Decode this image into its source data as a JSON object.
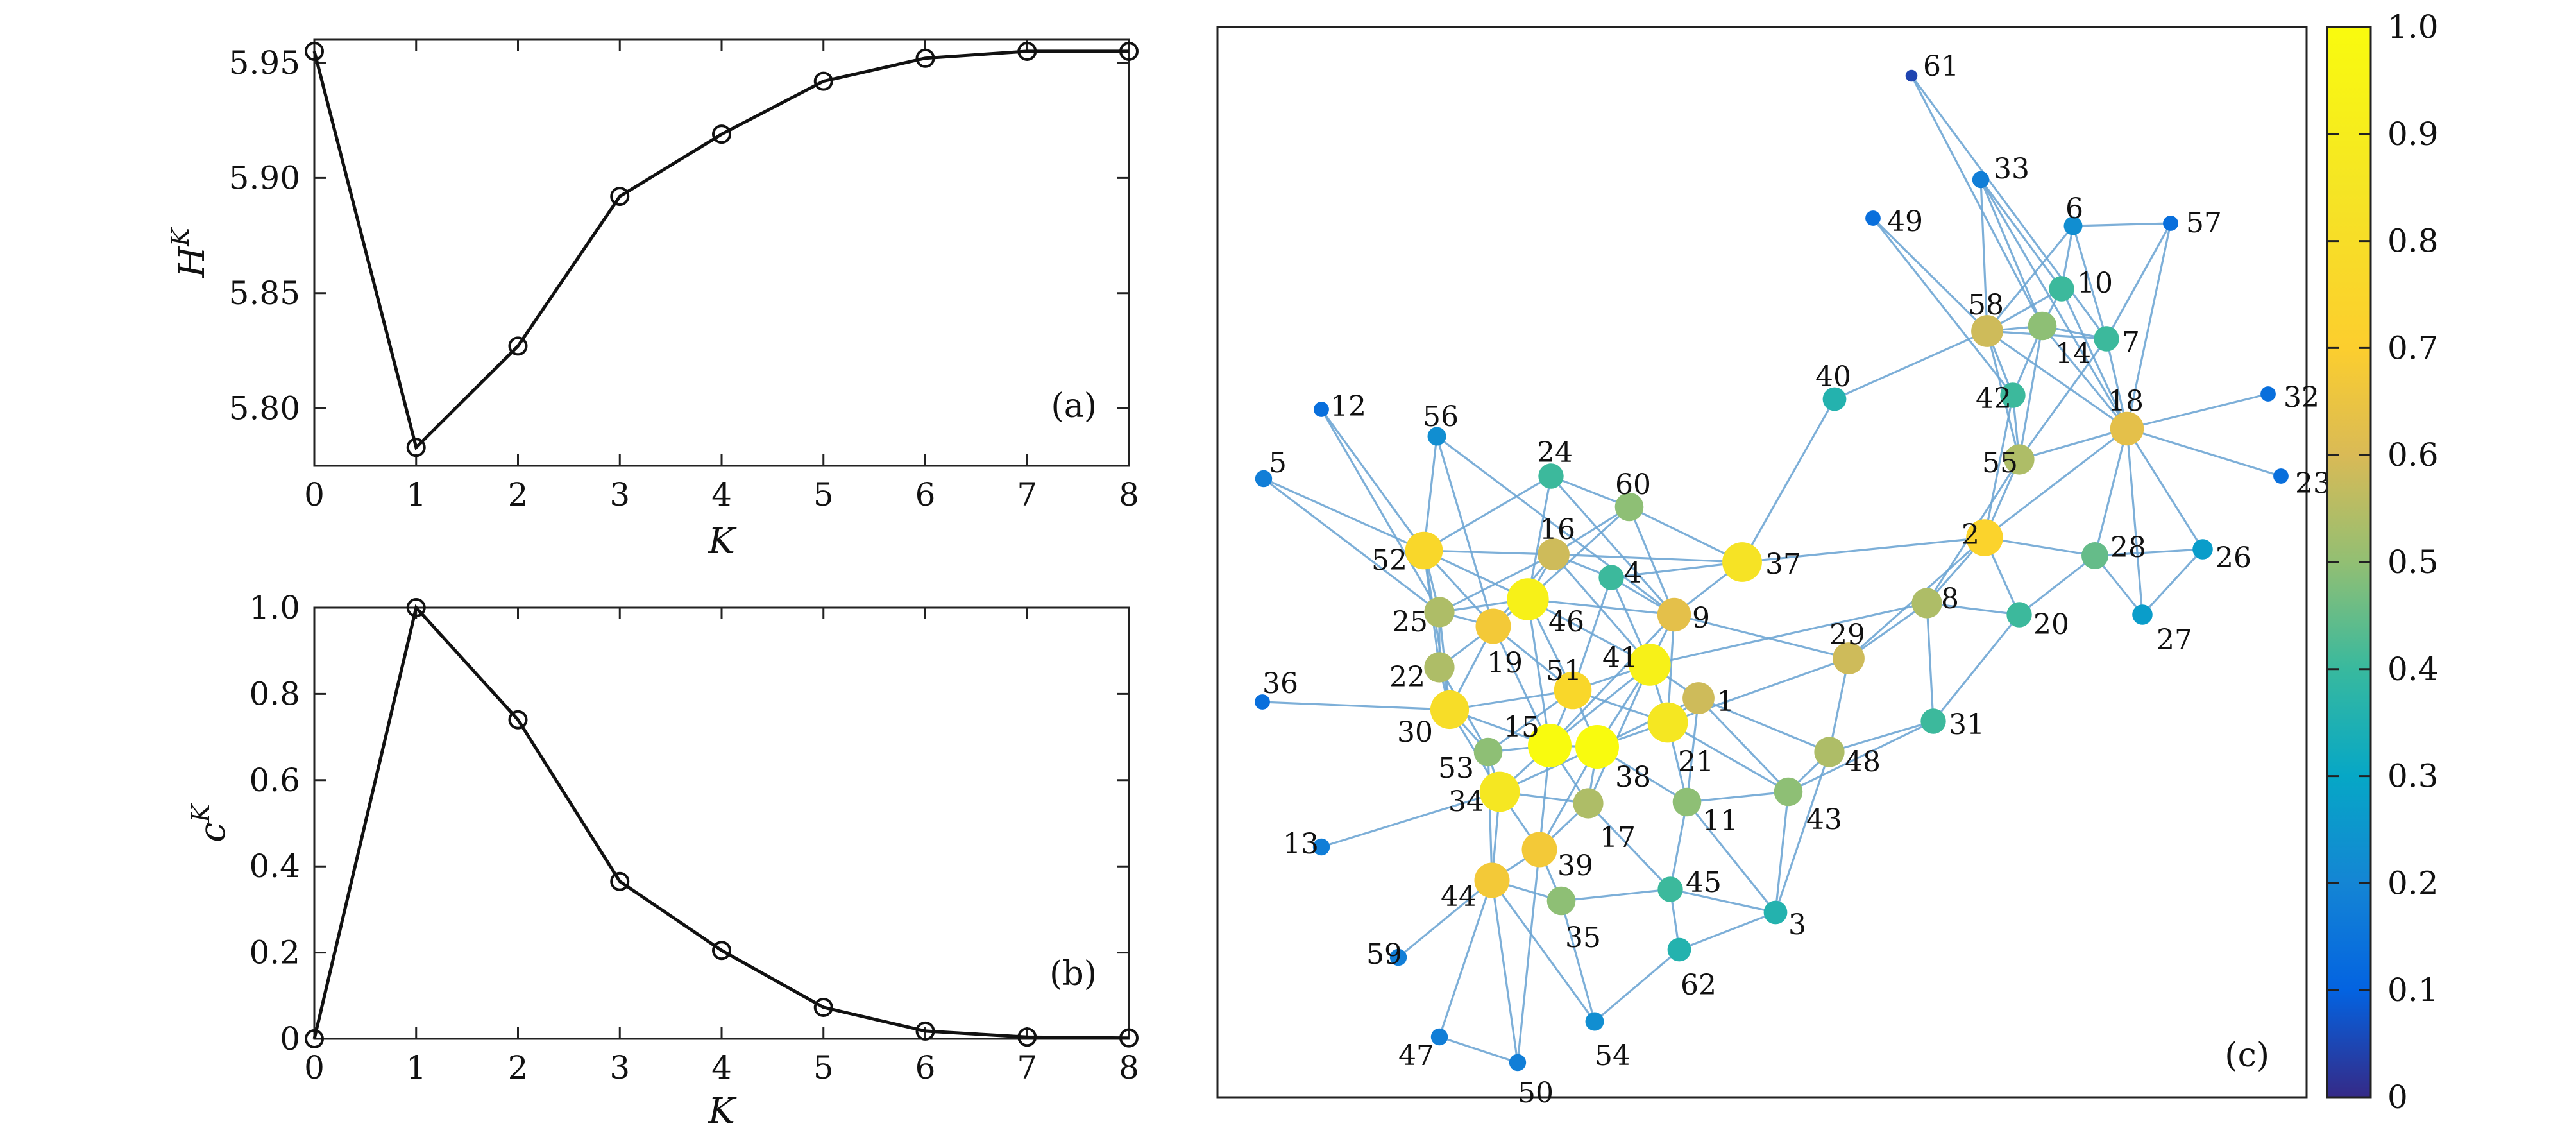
{
  "chart_data": [
    {
      "type": "line",
      "panel_label": "(a)",
      "xlabel": "K",
      "ylabel_base": "H",
      "ylabel_sup": "K",
      "x": [
        0,
        1,
        2,
        3,
        4,
        5,
        6,
        7,
        8
      ],
      "series": [
        {
          "values": [
            5.955,
            5.783,
            5.827,
            5.892,
            5.919,
            5.942,
            5.952,
            5.955,
            5.955
          ]
        }
      ],
      "xlim": [
        0,
        8
      ],
      "ylim": [
        5.775,
        5.96
      ],
      "xticks": [
        "0",
        "1",
        "2",
        "3",
        "4",
        "5",
        "6",
        "7",
        "8"
      ],
      "yticks": [
        {
          "value": 5.8,
          "label": "5.80"
        },
        {
          "value": 5.85,
          "label": "5.85"
        },
        {
          "value": 5.9,
          "label": "5.90"
        },
        {
          "value": 5.95,
          "label": "5.95"
        }
      ],
      "marker": "circle-open",
      "grid": false
    },
    {
      "type": "line",
      "panel_label": "(b)",
      "xlabel": "K",
      "ylabel_base": "c",
      "ylabel_sup": "K",
      "x": [
        0,
        1,
        2,
        3,
        4,
        5,
        6,
        7,
        8
      ],
      "series": [
        {
          "values": [
            0.0,
            1.0,
            0.74,
            0.365,
            0.205,
            0.073,
            0.018,
            0.004,
            0.002
          ]
        }
      ],
      "xlim": [
        0,
        8
      ],
      "ylim": [
        0,
        1.0
      ],
      "xticks": [
        "0",
        "1",
        "2",
        "3",
        "4",
        "5",
        "6",
        "7",
        "8"
      ],
      "yticks": [
        {
          "value": 0,
          "label": "0"
        },
        {
          "value": 0.2,
          "label": "0.2"
        },
        {
          "value": 0.4,
          "label": "0.4"
        },
        {
          "value": 0.6,
          "label": "0.6"
        },
        {
          "value": 0.8,
          "label": "0.8"
        },
        {
          "value": 1.0,
          "label": "1.0"
        }
      ],
      "marker": "circle-open",
      "grid": false
    },
    {
      "type": "network",
      "panel_label": "(c)",
      "colormap": "parula",
      "colorbar": {
        "min": 0,
        "max": 1,
        "ticks": [
          "0",
          "0.1",
          "0.2",
          "0.3",
          "0.4",
          "0.5",
          "0.6",
          "0.7",
          "0.8",
          "0.9",
          "1.0"
        ]
      },
      "nodes": [
        {
          "id": "1",
          "v": 0.65
        },
        {
          "id": "2",
          "v": 0.8
        },
        {
          "id": "3",
          "v": 0.4
        },
        {
          "id": "4",
          "v": 0.45
        },
        {
          "id": "5",
          "v": 0.2
        },
        {
          "id": "6",
          "v": 0.25
        },
        {
          "id": "7",
          "v": 0.45
        },
        {
          "id": "8",
          "v": 0.6
        },
        {
          "id": "9",
          "v": 0.7
        },
        {
          "id": "10",
          "v": 0.45
        },
        {
          "id": "11",
          "v": 0.55
        },
        {
          "id": "12",
          "v": 0.15
        },
        {
          "id": "13",
          "v": 0.2
        },
        {
          "id": "14",
          "v": 0.55
        },
        {
          "id": "15",
          "v": 1.0
        },
        {
          "id": "16",
          "v": 0.65
        },
        {
          "id": "17",
          "v": 0.6
        },
        {
          "id": "18",
          "v": 0.7
        },
        {
          "id": "19",
          "v": 0.75
        },
        {
          "id": "20",
          "v": 0.45
        },
        {
          "id": "21",
          "v": 0.9
        },
        {
          "id": "22",
          "v": 0.6
        },
        {
          "id": "23",
          "v": 0.15
        },
        {
          "id": "24",
          "v": 0.45
        },
        {
          "id": "25",
          "v": 0.6
        },
        {
          "id": "26",
          "v": 0.3
        },
        {
          "id": "27",
          "v": 0.3
        },
        {
          "id": "28",
          "v": 0.5
        },
        {
          "id": "29",
          "v": 0.65
        },
        {
          "id": "30",
          "v": 0.85
        },
        {
          "id": "31",
          "v": 0.45
        },
        {
          "id": "32",
          "v": 0.15
        },
        {
          "id": "33",
          "v": 0.2
        },
        {
          "id": "34",
          "v": 0.9
        },
        {
          "id": "35",
          "v": 0.55
        },
        {
          "id": "36",
          "v": 0.15
        },
        {
          "id": "37",
          "v": 0.88
        },
        {
          "id": "38",
          "v": 1.0
        },
        {
          "id": "39",
          "v": 0.75
        },
        {
          "id": "40",
          "v": 0.4
        },
        {
          "id": "41",
          "v": 0.95
        },
        {
          "id": "42",
          "v": 0.45
        },
        {
          "id": "43",
          "v": 0.55
        },
        {
          "id": "44",
          "v": 0.75
        },
        {
          "id": "45",
          "v": 0.45
        },
        {
          "id": "46",
          "v": 0.95
        },
        {
          "id": "47",
          "v": 0.2
        },
        {
          "id": "48",
          "v": 0.6
        },
        {
          "id": "49",
          "v": 0.15
        },
        {
          "id": "50",
          "v": 0.2
        },
        {
          "id": "51",
          "v": 0.82
        },
        {
          "id": "52",
          "v": 0.82
        },
        {
          "id": "53",
          "v": 0.55
        },
        {
          "id": "54",
          "v": 0.25
        },
        {
          "id": "55",
          "v": 0.6
        },
        {
          "id": "56",
          "v": 0.25
        },
        {
          "id": "57",
          "v": 0.15
        },
        {
          "id": "58",
          "v": 0.65
        },
        {
          "id": "59",
          "v": 0.2
        },
        {
          "id": "60",
          "v": 0.55
        },
        {
          "id": "61",
          "v": 0.05
        },
        {
          "id": "62",
          "v": 0.4
        }
      ],
      "edges": [
        [
          "61",
          "14"
        ],
        [
          "61",
          "7"
        ],
        [
          "33",
          "14"
        ],
        [
          "33",
          "10"
        ],
        [
          "33",
          "58"
        ],
        [
          "33",
          "18"
        ],
        [
          "49",
          "58"
        ],
        [
          "49",
          "42"
        ],
        [
          "6",
          "57"
        ],
        [
          "6",
          "10"
        ],
        [
          "6",
          "7"
        ],
        [
          "6",
          "58"
        ],
        [
          "57",
          "7"
        ],
        [
          "57",
          "18"
        ],
        [
          "10",
          "14"
        ],
        [
          "10",
          "58"
        ],
        [
          "10",
          "18"
        ],
        [
          "58",
          "14"
        ],
        [
          "58",
          "7"
        ],
        [
          "58",
          "42"
        ],
        [
          "58",
          "55"
        ],
        [
          "58",
          "40"
        ],
        [
          "58",
          "18"
        ],
        [
          "14",
          "7"
        ],
        [
          "14",
          "55"
        ],
        [
          "14",
          "42"
        ],
        [
          "14",
          "18"
        ],
        [
          "7",
          "18"
        ],
        [
          "7",
          "55"
        ],
        [
          "42",
          "55"
        ],
        [
          "42",
          "2"
        ],
        [
          "18",
          "32"
        ],
        [
          "18",
          "23"
        ],
        [
          "18",
          "55"
        ],
        [
          "18",
          "28"
        ],
        [
          "18",
          "2"
        ],
        [
          "18",
          "27"
        ],
        [
          "18",
          "26"
        ],
        [
          "55",
          "2"
        ],
        [
          "55",
          "8"
        ],
        [
          "2",
          "8"
        ],
        [
          "2",
          "28"
        ],
        [
          "2",
          "20"
        ],
        [
          "2",
          "37"
        ],
        [
          "2",
          "29"
        ],
        [
          "28",
          "26"
        ],
        [
          "28",
          "27"
        ],
        [
          "28",
          "20"
        ],
        [
          "26",
          "27"
        ],
        [
          "8",
          "20"
        ],
        [
          "8",
          "29"
        ],
        [
          "8",
          "31"
        ],
        [
          "8",
          "41"
        ],
        [
          "20",
          "31"
        ],
        [
          "29",
          "48"
        ],
        [
          "29",
          "21"
        ],
        [
          "29",
          "9"
        ],
        [
          "31",
          "48"
        ],
        [
          "31",
          "43"
        ],
        [
          "48",
          "43"
        ],
        [
          "48",
          "1"
        ],
        [
          "43",
          "3"
        ],
        [
          "43",
          "11"
        ],
        [
          "40",
          "37"
        ],
        [
          "37",
          "9"
        ],
        [
          "37",
          "60"
        ],
        [
          "37",
          "16"
        ],
        [
          "37",
          "4"
        ],
        [
          "60",
          "24"
        ],
        [
          "60",
          "46"
        ],
        [
          "60",
          "9"
        ],
        [
          "60",
          "16"
        ],
        [
          "24",
          "52"
        ],
        [
          "24",
          "46"
        ],
        [
          "24",
          "9"
        ],
        [
          "56",
          "52"
        ],
        [
          "56",
          "19"
        ],
        [
          "56",
          "9"
        ],
        [
          "12",
          "52"
        ],
        [
          "12",
          "25"
        ],
        [
          "5",
          "52"
        ],
        [
          "5",
          "25"
        ],
        [
          "52",
          "25"
        ],
        [
          "52",
          "16"
        ],
        [
          "52",
          "46"
        ],
        [
          "52",
          "19"
        ],
        [
          "52",
          "22"
        ],
        [
          "52",
          "30"
        ],
        [
          "16",
          "46"
        ],
        [
          "16",
          "4"
        ],
        [
          "16",
          "19"
        ],
        [
          "16",
          "41"
        ],
        [
          "16",
          "25"
        ],
        [
          "46",
          "19"
        ],
        [
          "46",
          "25"
        ],
        [
          "46",
          "9"
        ],
        [
          "46",
          "41"
        ],
        [
          "46",
          "51"
        ],
        [
          "46",
          "15"
        ],
        [
          "4",
          "9"
        ],
        [
          "4",
          "41"
        ],
        [
          "4",
          "51"
        ],
        [
          "9",
          "41"
        ],
        [
          "9",
          "21"
        ],
        [
          "9",
          "15"
        ],
        [
          "41",
          "51"
        ],
        [
          "41",
          "1"
        ],
        [
          "41",
          "21"
        ],
        [
          "41",
          "15"
        ],
        [
          "41",
          "38"
        ],
        [
          "41",
          "17"
        ],
        [
          "25",
          "19"
        ],
        [
          "25",
          "22"
        ],
        [
          "25",
          "30"
        ],
        [
          "19",
          "22"
        ],
        [
          "19",
          "51"
        ],
        [
          "19",
          "15"
        ],
        [
          "19",
          "30"
        ],
        [
          "22",
          "30"
        ],
        [
          "22",
          "53"
        ],
        [
          "36",
          "30"
        ],
        [
          "30",
          "15"
        ],
        [
          "30",
          "53"
        ],
        [
          "30",
          "34"
        ],
        [
          "51",
          "15"
        ],
        [
          "51",
          "38"
        ],
        [
          "51",
          "53"
        ],
        [
          "51",
          "21"
        ],
        [
          "15",
          "38"
        ],
        [
          "15",
          "53"
        ],
        [
          "15",
          "34"
        ],
        [
          "15",
          "17"
        ],
        [
          "15",
          "39"
        ],
        [
          "38",
          "21"
        ],
        [
          "38",
          "17"
        ],
        [
          "38",
          "1"
        ],
        [
          "38",
          "11"
        ],
        [
          "38",
          "39"
        ],
        [
          "21",
          "1"
        ],
        [
          "21",
          "11"
        ],
        [
          "21",
          "43"
        ],
        [
          "1",
          "43"
        ],
        [
          "1",
          "11"
        ],
        [
          "53",
          "34"
        ],
        [
          "53",
          "44"
        ],
        [
          "34",
          "17"
        ],
        [
          "34",
          "39"
        ],
        [
          "34",
          "44"
        ],
        [
          "13",
          "34"
        ],
        [
          "17",
          "39"
        ],
        [
          "17",
          "45"
        ],
        [
          "39",
          "44"
        ],
        [
          "39",
          "35"
        ],
        [
          "44",
          "35"
        ],
        [
          "44",
          "47"
        ],
        [
          "44",
          "59"
        ],
        [
          "44",
          "50"
        ],
        [
          "35",
          "45"
        ],
        [
          "35",
          "54"
        ],
        [
          "45",
          "3"
        ],
        [
          "45",
          "62"
        ],
        [
          "11",
          "3"
        ],
        [
          "11",
          "45"
        ],
        [
          "62",
          "54"
        ],
        [
          "62",
          "3"
        ],
        [
          "54",
          "44"
        ],
        [
          "47",
          "50"
        ],
        [
          "50",
          "39"
        ],
        [
          "3",
          "48"
        ],
        [
          "51",
          "30"
        ],
        [
          "34",
          "38"
        ]
      ]
    }
  ]
}
